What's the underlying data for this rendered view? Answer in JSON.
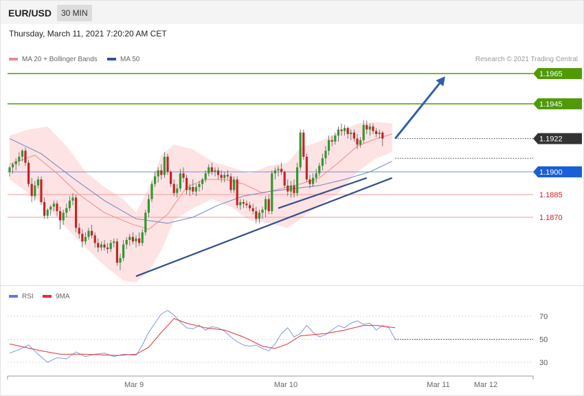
{
  "header": {
    "symbol": "EUR/USD",
    "timeframe": "30 MIN"
  },
  "timestamp": "Thursday, March 11, 2021 7:20:20 AM CET",
  "legend": {
    "main": [
      {
        "label": "MA 20 + Bollinger Bands",
        "color": "#f08a8a"
      },
      {
        "label": "MA 50",
        "color": "#2f5597"
      }
    ],
    "rsi": [
      {
        "label": "RSI",
        "color": "#5b7fd6"
      },
      {
        "label": "9MA",
        "color": "#e03030"
      }
    ]
  },
  "credit": "Research © 2021 Trading Central",
  "levels": [
    {
      "value": "1.1965",
      "kind": "resistance",
      "color": "#4f9a06"
    },
    {
      "value": "1.1945",
      "kind": "resistance",
      "color": "#4f9a06"
    },
    {
      "value": "1.1922",
      "kind": "last",
      "color": "#333333"
    },
    {
      "value": "1.1900",
      "kind": "pivot",
      "color": "#1a5fd6"
    },
    {
      "value": "1.1885",
      "kind": "support",
      "color": "#cc2020"
    },
    {
      "value": "1.1870",
      "kind": "support",
      "color": "#cc2020"
    }
  ],
  "x_labels": [
    "Mar 9",
    "Mar 10",
    "Mar 11",
    "Mar 12"
  ],
  "rsi_levels": [
    "70",
    "50",
    "30"
  ],
  "chart_data": {
    "type": "candlestick",
    "title": "EUR/USD",
    "subtitle": "30 MIN",
    "y_range": [
      1.1812,
      1.1968
    ],
    "candles": [
      [
        1.19,
        1.1904,
        1.1897,
        1.1903
      ],
      [
        1.1903,
        1.1906,
        1.1899,
        1.1905
      ],
      [
        1.1905,
        1.1909,
        1.1901,
        1.1907
      ],
      [
        1.1907,
        1.1913,
        1.1904,
        1.191
      ],
      [
        1.191,
        1.1915,
        1.1907,
        1.1914
      ],
      [
        1.1914,
        1.1916,
        1.1904,
        1.1906
      ],
      [
        1.1906,
        1.1908,
        1.189,
        1.1892
      ],
      [
        1.1892,
        1.1896,
        1.188,
        1.1884
      ],
      [
        1.1884,
        1.1894,
        1.1881,
        1.1891
      ],
      [
        1.1891,
        1.1897,
        1.1889,
        1.1895
      ],
      [
        1.1895,
        1.1897,
        1.1878,
        1.188
      ],
      [
        1.188,
        1.1883,
        1.1869,
        1.1871
      ],
      [
        1.1871,
        1.1876,
        1.1869,
        1.1875
      ],
      [
        1.1875,
        1.1878,
        1.1871,
        1.1877
      ],
      [
        1.1877,
        1.1881,
        1.1874,
        1.1879
      ],
      [
        1.1879,
        1.1881,
        1.1871,
        1.1874
      ],
      [
        1.1874,
        1.1877,
        1.1862,
        1.1868
      ],
      [
        1.1868,
        1.1875,
        1.1865,
        1.1873
      ],
      [
        1.1873,
        1.1879,
        1.187,
        1.1876
      ],
      [
        1.1876,
        1.1884,
        1.1874,
        1.1881
      ],
      [
        1.1881,
        1.1886,
        1.1878,
        1.1883
      ],
      [
        1.1883,
        1.1885,
        1.186,
        1.1863
      ],
      [
        1.1863,
        1.1866,
        1.1856,
        1.1859
      ],
      [
        1.1859,
        1.1862,
        1.185,
        1.1854
      ],
      [
        1.1854,
        1.186,
        1.1852,
        1.1857
      ],
      [
        1.1857,
        1.1863,
        1.1855,
        1.1861
      ],
      [
        1.1861,
        1.1865,
        1.1856,
        1.1858
      ],
      [
        1.1858,
        1.186,
        1.185,
        1.1853
      ],
      [
        1.1853,
        1.1856,
        1.1847,
        1.185
      ],
      [
        1.185,
        1.1854,
        1.1848,
        1.1852
      ],
      [
        1.1852,
        1.1855,
        1.1848,
        1.185
      ],
      [
        1.185,
        1.1853,
        1.1846,
        1.1849
      ],
      [
        1.1849,
        1.1855,
        1.1847,
        1.1853
      ],
      [
        1.1853,
        1.1856,
        1.185,
        1.1854
      ],
      [
        1.1854,
        1.1856,
        1.1838,
        1.184
      ],
      [
        1.184,
        1.1846,
        1.1835,
        1.1843
      ],
      [
        1.1843,
        1.1855,
        1.1841,
        1.1852
      ],
      [
        1.1852,
        1.1857,
        1.1849,
        1.1855
      ],
      [
        1.1855,
        1.1859,
        1.1851,
        1.1857
      ],
      [
        1.1857,
        1.186,
        1.1852,
        1.1854
      ],
      [
        1.1854,
        1.1858,
        1.185,
        1.1856
      ],
      [
        1.1856,
        1.186,
        1.1851,
        1.1853
      ],
      [
        1.1853,
        1.1862,
        1.1851,
        1.186
      ],
      [
        1.186,
        1.1875,
        1.1858,
        1.1873
      ],
      [
        1.1873,
        1.1885,
        1.187,
        1.1882
      ],
      [
        1.1882,
        1.1894,
        1.188,
        1.1892
      ],
      [
        1.1892,
        1.19,
        1.189,
        1.1897
      ],
      [
        1.1897,
        1.1903,
        1.1893,
        1.1901
      ],
      [
        1.1901,
        1.1905,
        1.1895,
        1.1898
      ],
      [
        1.1898,
        1.1913,
        1.1896,
        1.191
      ],
      [
        1.191,
        1.1912,
        1.1898,
        1.19
      ],
      [
        1.19,
        1.1901,
        1.189,
        1.1892
      ],
      [
        1.1892,
        1.1895,
        1.1884,
        1.1886
      ],
      [
        1.1886,
        1.1892,
        1.1883,
        1.1889
      ],
      [
        1.1889,
        1.1902,
        1.1887,
        1.1899
      ],
      [
        1.1899,
        1.1903,
        1.1893,
        1.1896
      ],
      [
        1.1896,
        1.1898,
        1.1885,
        1.1888
      ],
      [
        1.1888,
        1.1892,
        1.1884,
        1.189
      ],
      [
        1.189,
        1.1895,
        1.1885,
        1.1887
      ],
      [
        1.1887,
        1.1892,
        1.1884,
        1.189
      ],
      [
        1.189,
        1.1894,
        1.1887,
        1.1892
      ],
      [
        1.1892,
        1.1896,
        1.1888,
        1.1895
      ],
      [
        1.1895,
        1.1901,
        1.1893,
        1.1899
      ],
      [
        1.1899,
        1.1905,
        1.1897,
        1.1903
      ],
      [
        1.1903,
        1.1906,
        1.1898,
        1.19
      ],
      [
        1.19,
        1.1903,
        1.1897,
        1.1901
      ],
      [
        1.1901,
        1.1903,
        1.1895,
        1.1898
      ],
      [
        1.1898,
        1.1901,
        1.1893,
        1.1896
      ],
      [
        1.1896,
        1.19,
        1.1893,
        1.1898
      ],
      [
        1.1898,
        1.1901,
        1.1895,
        1.1897
      ],
      [
        1.1897,
        1.1899,
        1.1886,
        1.1888
      ],
      [
        1.1888,
        1.1897,
        1.1886,
        1.1895
      ],
      [
        1.1895,
        1.1897,
        1.1876,
        1.1878
      ],
      [
        1.1878,
        1.1882,
        1.1875,
        1.188
      ],
      [
        1.188,
        1.1882,
        1.1876,
        1.1879
      ],
      [
        1.1879,
        1.1881,
        1.1876,
        1.1878
      ],
      [
        1.1878,
        1.188,
        1.1874,
        1.1876
      ],
      [
        1.1876,
        1.1879,
        1.1872,
        1.1874
      ],
      [
        1.1874,
        1.1877,
        1.1866,
        1.1869
      ],
      [
        1.1869,
        1.1875,
        1.1866,
        1.1873
      ],
      [
        1.1873,
        1.1877,
        1.1869,
        1.1875
      ],
      [
        1.1875,
        1.1884,
        1.187,
        1.1882
      ],
      [
        1.1882,
        1.1885,
        1.1872,
        1.1874
      ],
      [
        1.1874,
        1.1901,
        1.1872,
        1.1899
      ],
      [
        1.1899,
        1.1903,
        1.1895,
        1.1901
      ],
      [
        1.1901,
        1.1904,
        1.1897,
        1.1902
      ],
      [
        1.1902,
        1.1906,
        1.1898,
        1.19
      ],
      [
        1.19,
        1.1901,
        1.1889,
        1.1891
      ],
      [
        1.1891,
        1.1895,
        1.1884,
        1.1887
      ],
      [
        1.1887,
        1.1894,
        1.1883,
        1.1891
      ],
      [
        1.1891,
        1.1895,
        1.1883,
        1.1886
      ],
      [
        1.1886,
        1.1906,
        1.1884,
        1.1903
      ],
      [
        1.1903,
        1.1928,
        1.1901,
        1.1926
      ],
      [
        1.1926,
        1.1928,
        1.1908,
        1.191
      ],
      [
        1.191,
        1.1912,
        1.1893,
        1.1895
      ],
      [
        1.1895,
        1.1898,
        1.1889,
        1.1892
      ],
      [
        1.1892,
        1.1899,
        1.189,
        1.1896
      ],
      [
        1.1896,
        1.1902,
        1.1893,
        1.1899
      ],
      [
        1.1899,
        1.1906,
        1.1897,
        1.1904
      ],
      [
        1.1904,
        1.1912,
        1.1901,
        1.1909
      ],
      [
        1.1909,
        1.1917,
        1.1905,
        1.1914
      ],
      [
        1.1914,
        1.1924,
        1.1911,
        1.1921
      ],
      [
        1.1921,
        1.1924,
        1.1917,
        1.192
      ],
      [
        1.192,
        1.1926,
        1.1918,
        1.1924
      ],
      [
        1.1924,
        1.193,
        1.192,
        1.1928
      ],
      [
        1.1928,
        1.1932,
        1.1924,
        1.1927
      ],
      [
        1.1927,
        1.1931,
        1.1924,
        1.1929
      ],
      [
        1.1929,
        1.193,
        1.1922,
        1.1925
      ],
      [
        1.1925,
        1.1928,
        1.1921,
        1.1926
      ],
      [
        1.1926,
        1.1928,
        1.192,
        1.1922
      ],
      [
        1.1922,
        1.1925,
        1.1915,
        1.1918
      ],
      [
        1.1918,
        1.1923,
        1.1916,
        1.1921
      ],
      [
        1.1921,
        1.1934,
        1.1919,
        1.1931
      ],
      [
        1.1931,
        1.1934,
        1.1925,
        1.1928
      ],
      [
        1.1928,
        1.1932,
        1.1924,
        1.193
      ],
      [
        1.193,
        1.1932,
        1.1925,
        1.1927
      ],
      [
        1.1927,
        1.1929,
        1.1923,
        1.1925
      ],
      [
        1.1925,
        1.1928,
        1.1922,
        1.1926
      ],
      [
        1.1926,
        1.1927,
        1.1917,
        1.1922
      ]
    ],
    "ma20": [
      [
        0,
        1.1905
      ],
      [
        8,
        1.1911
      ],
      [
        15,
        1.1899
      ],
      [
        22,
        1.1885
      ],
      [
        30,
        1.1873
      ],
      [
        38,
        1.1866
      ],
      [
        44,
        1.1862
      ],
      [
        50,
        1.1872
      ],
      [
        56,
        1.189
      ],
      [
        62,
        1.1895
      ],
      [
        68,
        1.1895
      ],
      [
        74,
        1.1892
      ],
      [
        80,
        1.1886
      ],
      [
        86,
        1.1889
      ],
      [
        92,
        1.1892
      ],
      [
        98,
        1.1896
      ],
      [
        104,
        1.1906
      ],
      [
        110,
        1.1917
      ],
      [
        116,
        1.1922
      ],
      [
        121,
        1.1925
      ]
    ],
    "bb_upper": [
      [
        0,
        1.1924
      ],
      [
        6,
        1.1928
      ],
      [
        12,
        1.193
      ],
      [
        18,
        1.1917
      ],
      [
        24,
        1.19
      ],
      [
        30,
        1.189
      ],
      [
        36,
        1.1882
      ],
      [
        40,
        1.1873
      ],
      [
        44,
        1.1889
      ],
      [
        48,
        1.1911
      ],
      [
        52,
        1.1918
      ],
      [
        58,
        1.1915
      ],
      [
        64,
        1.1907
      ],
      [
        70,
        1.1903
      ],
      [
        76,
        1.1899
      ],
      [
        82,
        1.1904
      ],
      [
        88,
        1.1906
      ],
      [
        92,
        1.1916
      ],
      [
        98,
        1.192
      ],
      [
        104,
        1.1926
      ],
      [
        110,
        1.1932
      ],
      [
        116,
        1.1933
      ],
      [
        121,
        1.1932
      ]
    ],
    "bb_lower": [
      [
        0,
        1.1895
      ],
      [
        6,
        1.1886
      ],
      [
        12,
        1.1876
      ],
      [
        18,
        1.1863
      ],
      [
        24,
        1.185
      ],
      [
        30,
        1.1838
      ],
      [
        36,
        1.1828
      ],
      [
        40,
        1.1827
      ],
      [
        44,
        1.1834
      ],
      [
        48,
        1.1848
      ],
      [
        52,
        1.1868
      ],
      [
        58,
        1.1876
      ],
      [
        64,
        1.1882
      ],
      [
        70,
        1.1877
      ],
      [
        76,
        1.1868
      ],
      [
        82,
        1.1866
      ],
      [
        88,
        1.1863
      ],
      [
        92,
        1.1869
      ],
      [
        98,
        1.1878
      ],
      [
        104,
        1.1886
      ],
      [
        110,
        1.19
      ],
      [
        116,
        1.1909
      ],
      [
        121,
        1.1913
      ]
    ],
    "ma50": [
      [
        0,
        1.1922
      ],
      [
        10,
        1.1912
      ],
      [
        20,
        1.1896
      ],
      [
        30,
        1.1881
      ],
      [
        40,
        1.1869
      ],
      [
        50,
        1.1866
      ],
      [
        58,
        1.187
      ],
      [
        66,
        1.1878
      ],
      [
        74,
        1.1884
      ],
      [
        82,
        1.1887
      ],
      [
        90,
        1.1889
      ],
      [
        98,
        1.1891
      ],
      [
        106,
        1.1895
      ],
      [
        114,
        1.19
      ],
      [
        121,
        1.1907
      ]
    ],
    "trendlines": [
      {
        "from": [
          40,
          1.1831
        ],
        "to": [
          121,
          1.1896
        ]
      },
      {
        "from": [
          85,
          1.1876
        ],
        "to": [
          113,
          1.1896
        ]
      }
    ],
    "projection": {
      "from": [
        122,
        1.1922
      ],
      "to": [
        137,
        1.1961
      ]
    },
    "rsi": {
      "y_range": [
        20,
        80
      ],
      "rsi": [
        [
          0,
          38
        ],
        [
          3,
          41
        ],
        [
          6,
          45
        ],
        [
          9,
          37
        ],
        [
          12,
          30
        ],
        [
          15,
          34
        ],
        [
          18,
          33
        ],
        [
          21,
          39
        ],
        [
          24,
          35
        ],
        [
          27,
          37
        ],
        [
          30,
          38
        ],
        [
          33,
          35
        ],
        [
          36,
          37
        ],
        [
          40,
          36
        ],
        [
          42,
          45
        ],
        [
          44,
          56
        ],
        [
          46,
          64
        ],
        [
          48,
          72
        ],
        [
          50,
          75
        ],
        [
          52,
          71
        ],
        [
          54,
          65
        ],
        [
          56,
          60
        ],
        [
          58,
          59
        ],
        [
          60,
          62
        ],
        [
          62,
          58
        ],
        [
          64,
          61
        ],
        [
          66,
          60
        ],
        [
          68,
          57
        ],
        [
          70,
          52
        ],
        [
          72,
          48
        ],
        [
          74,
          45
        ],
        [
          76,
          44
        ],
        [
          78,
          45
        ],
        [
          80,
          42
        ],
        [
          82,
          40
        ],
        [
          84,
          46
        ],
        [
          86,
          55
        ],
        [
          88,
          60
        ],
        [
          90,
          52
        ],
        [
          92,
          55
        ],
        [
          94,
          62
        ],
        [
          96,
          56
        ],
        [
          98,
          52
        ],
        [
          100,
          54
        ],
        [
          102,
          58
        ],
        [
          104,
          62
        ],
        [
          106,
          60
        ],
        [
          108,
          64
        ],
        [
          110,
          66
        ],
        [
          112,
          63
        ],
        [
          114,
          64
        ],
        [
          116,
          58
        ],
        [
          118,
          62
        ],
        [
          120,
          60
        ],
        [
          122,
          50
        ]
      ],
      "ma9": [
        [
          0,
          46
        ],
        [
          10,
          40
        ],
        [
          16,
          37
        ],
        [
          24,
          37
        ],
        [
          34,
          36
        ],
        [
          40,
          37
        ],
        [
          44,
          43
        ],
        [
          48,
          56
        ],
        [
          52,
          68
        ],
        [
          56,
          64
        ],
        [
          62,
          60
        ],
        [
          68,
          58
        ],
        [
          74,
          52
        ],
        [
          80,
          44
        ],
        [
          84,
          42
        ],
        [
          88,
          46
        ],
        [
          92,
          53
        ],
        [
          100,
          55
        ],
        [
          106,
          58
        ],
        [
          112,
          62
        ],
        [
          116,
          62
        ],
        [
          122,
          60
        ]
      ]
    }
  }
}
